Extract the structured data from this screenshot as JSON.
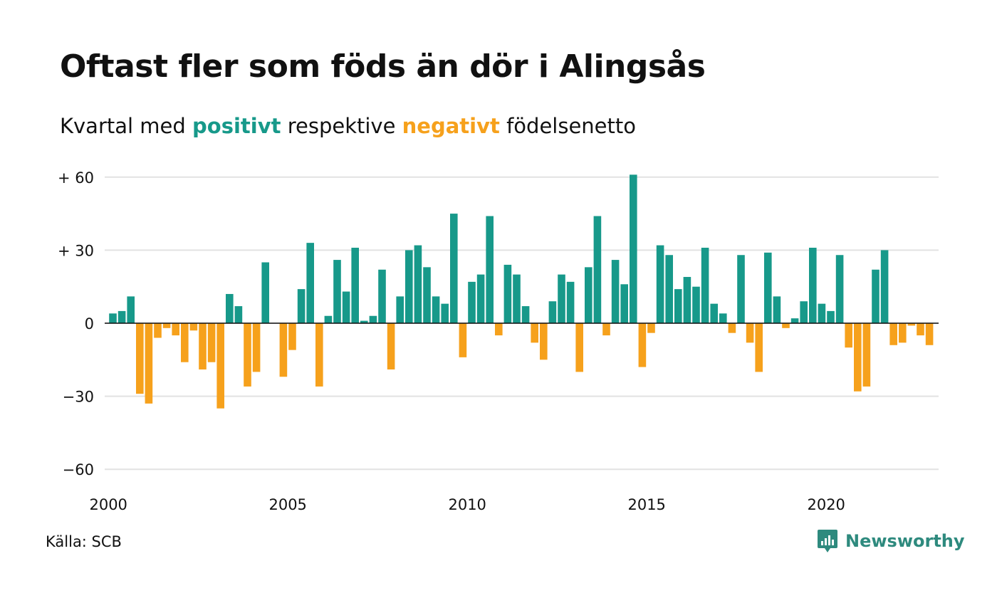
{
  "header": {
    "title": "Oftast fler som föds än dör i Alingsås",
    "subtitle_pre": "Kvartal med",
    "subtitle_pos": "positivt",
    "subtitle_mid": "respektive",
    "subtitle_neg": "negativt",
    "subtitle_post": "födelsenetto"
  },
  "footer": {
    "source": "Källa: SCB",
    "brand": "Newsworthy"
  },
  "colors": {
    "positive": "#17998a",
    "negative": "#f6a11c",
    "grid": "#e2e2e2",
    "brand": "#2e8a7e"
  },
  "chart_data": {
    "type": "bar",
    "x_start": "2000 Q1",
    "x_ticks": [
      "2000",
      "2005",
      "2010",
      "2015",
      "2020"
    ],
    "y_ticks": [
      {
        "value": 60,
        "label": "+ 60"
      },
      {
        "value": 30,
        "label": "+ 30"
      },
      {
        "value": 0,
        "label": "0"
      },
      {
        "value": -30,
        "label": "−30"
      },
      {
        "value": -60,
        "label": "−60"
      }
    ],
    "ylim": [
      -60,
      60
    ],
    "grid": true,
    "values": [
      4,
      5,
      11,
      -29,
      -33,
      -6,
      -2,
      -5,
      -16,
      -3,
      -19,
      -16,
      -35,
      12,
      7,
      -26,
      -20,
      25,
      0,
      -22,
      -11,
      14,
      33,
      -26,
      3,
      26,
      13,
      31,
      1,
      3,
      22,
      -19,
      11,
      30,
      32,
      23,
      11,
      8,
      45,
      -14,
      17,
      20,
      44,
      -5,
      24,
      20,
      7,
      -8,
      -15,
      9,
      20,
      17,
      -20,
      23,
      44,
      -5,
      26,
      16,
      61,
      -18,
      -4,
      32,
      28,
      14,
      19,
      15,
      31,
      8,
      4,
      -4,
      28,
      -8,
      -20,
      29,
      11,
      -2,
      2,
      9,
      31,
      8,
      5,
      28,
      -10,
      -28,
      -26,
      22,
      30,
      -9,
      -8,
      -1,
      -5,
      -9
    ]
  }
}
